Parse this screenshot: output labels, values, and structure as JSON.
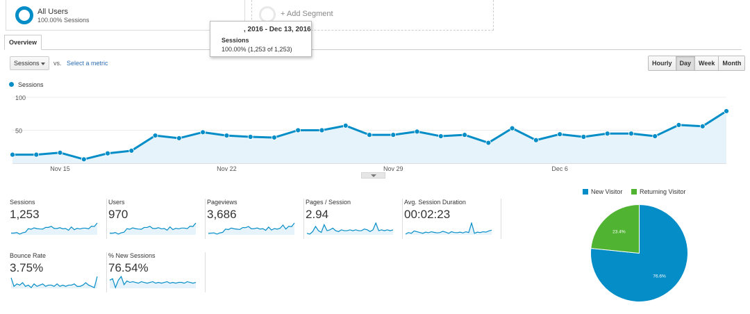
{
  "segments": {
    "active": {
      "name": "All Users",
      "subtitle": "100.00% Sessions"
    },
    "add_label": "+ Add Segment"
  },
  "tooltip": {
    "date": ", 2016 - Dec 13, 2016",
    "metric": "Sessions",
    "value": "100.00% (1,253 of 1,253)"
  },
  "tabs": {
    "overview": "Overview"
  },
  "controls": {
    "metric_select": "Sessions",
    "vs_label": "vs.",
    "select_metric_link": "Select a metric",
    "periods": [
      {
        "label": "Hourly",
        "active": false
      },
      {
        "label": "Day",
        "active": true
      },
      {
        "label": "Week",
        "active": false
      },
      {
        "label": "Month",
        "active": false
      }
    ]
  },
  "chart_data": {
    "type": "area",
    "title": "",
    "legend": [
      "Sessions"
    ],
    "series": [
      {
        "name": "Sessions",
        "color": "#058dc7",
        "values": [
          13,
          13,
          16,
          6,
          15,
          19,
          42,
          38,
          47,
          42,
          40,
          39,
          50,
          50,
          57,
          43,
          43,
          48,
          41,
          43,
          31,
          53,
          35,
          44,
          40,
          45,
          45,
          41,
          58,
          56,
          79
        ]
      }
    ],
    "x_tick_labels": [
      "Nov 15",
      "Nov 22",
      "Nov 29",
      "Dec 6"
    ],
    "y_tick_labels": [
      "100",
      "50"
    ],
    "ylim": [
      0,
      100
    ],
    "grid": true
  },
  "scorecards": [
    {
      "title": "Sessions",
      "value": "1,253",
      "spark": [
        13,
        13,
        16,
        6,
        15,
        19,
        42,
        38,
        47,
        42,
        40,
        39,
        50,
        50,
        57,
        43,
        43,
        48,
        41,
        43,
        31,
        53,
        35,
        44,
        40,
        45,
        45,
        41,
        58,
        56,
        79
      ]
    },
    {
      "title": "Users",
      "value": "970",
      "spark": [
        10,
        10,
        13,
        5,
        12,
        15,
        33,
        30,
        37,
        33,
        31,
        30,
        39,
        39,
        45,
        34,
        34,
        38,
        32,
        34,
        25,
        42,
        28,
        35,
        32,
        36,
        36,
        33,
        46,
        44,
        62
      ]
    },
    {
      "title": "Pageviews",
      "value": "3,686",
      "spark": [
        35,
        40,
        45,
        20,
        44,
        55,
        120,
        110,
        140,
        125,
        118,
        112,
        150,
        148,
        170,
        125,
        128,
        142,
        120,
        128,
        95,
        160,
        100,
        130,
        118,
        135,
        200,
        120,
        175,
        168,
        240
      ]
    },
    {
      "title": "Pages / Session",
      "value": "2.94",
      "spark": [
        2.6,
        2.5,
        2.8,
        3.4,
        2.9,
        2.7,
        3.6,
        2.9,
        3.0,
        3.2,
        2.9,
        2.8,
        3.0,
        2.9,
        2.9,
        3.0,
        2.9,
        3.0,
        2.9,
        2.9,
        3.1,
        3.0,
        2.8,
        3.0,
        3.8,
        2.9,
        3.0,
        2.9,
        3.0,
        2.9,
        3.0
      ]
    },
    {
      "title": "Avg. Session Duration",
      "value": "00:02:23",
      "spark": [
        120,
        140,
        130,
        160,
        150,
        140,
        130,
        145,
        138,
        150,
        142,
        136,
        140,
        155,
        145,
        130,
        150,
        140,
        138,
        145,
        135,
        150,
        140,
        260,
        130,
        145,
        140,
        150,
        145,
        160,
        170
      ]
    },
    {
      "title": "Bounce Rate",
      "value": "3.75%",
      "spark": [
        9,
        2,
        4,
        3,
        5,
        2,
        3,
        1,
        4,
        2,
        3,
        4,
        2,
        3,
        3,
        2,
        4,
        2,
        3,
        2,
        3,
        3,
        4,
        2,
        2,
        3,
        5,
        3,
        2,
        1,
        10
      ]
    },
    {
      "title": "% New Sessions",
      "value": "76.54%",
      "spark": [
        80,
        82,
        70,
        80,
        85,
        74,
        79,
        77,
        78,
        77,
        76,
        78,
        77,
        76,
        77,
        78,
        76,
        77,
        76,
        77,
        78,
        76,
        77,
        76,
        77,
        77,
        76,
        78,
        77,
        76,
        77
      ]
    }
  ],
  "pie": {
    "legend": [
      {
        "label": "New Visitor",
        "color": "#058dc7"
      },
      {
        "label": "Returning Visitor",
        "color": "#50b432"
      }
    ],
    "slices": [
      {
        "label": "New Visitor",
        "value": 76.6,
        "text": "76.6%",
        "color": "#058dc7"
      },
      {
        "label": "Returning Visitor",
        "value": 23.4,
        "text": "23.4%",
        "color": "#50b432"
      }
    ]
  }
}
